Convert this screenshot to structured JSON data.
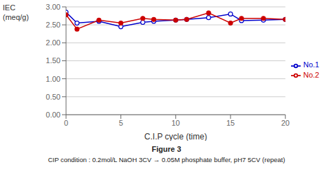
{
  "chart_data": {
    "type": "line",
    "xlabel": "C.I.P cycle (time)",
    "ylabel": [
      "IEC",
      "(meq/g)"
    ],
    "annotations": [
      "Figure 3",
      "CIP condition : 0.2mol/L NaOH 3CV → 0.05M phosphate buffer, pH7 5CV (repeat)"
    ],
    "x": [
      0,
      1,
      3,
      5,
      7,
      8,
      10,
      11,
      13,
      15,
      16,
      18,
      20
    ],
    "series": [
      {
        "name": "No.1",
        "color": "#0000cc",
        "marker": "open_circle",
        "values": [
          2.85,
          2.55,
          2.6,
          2.45,
          2.57,
          2.6,
          2.63,
          2.65,
          2.7,
          2.8,
          2.62,
          2.63,
          2.65
        ]
      },
      {
        "name": "No.2",
        "color": "#cc0000",
        "marker": "circle",
        "values": [
          2.78,
          2.38,
          2.63,
          2.55,
          2.68,
          2.65,
          2.63,
          2.65,
          2.83,
          2.55,
          2.68,
          2.68,
          2.65
        ]
      }
    ],
    "xlim": [
      0,
      20
    ],
    "ylim": [
      0.0,
      3.0
    ],
    "xticks": [
      0,
      5,
      10,
      15,
      20
    ],
    "yticks": [
      {
        "value": 0.0,
        "label": "0.00"
      },
      {
        "value": 0.5,
        "label": "0.50"
      },
      {
        "value": 1.0,
        "label": "1.00"
      },
      {
        "value": 1.5,
        "label": "1.50"
      },
      {
        "value": 2.0,
        "label": "2.00"
      },
      {
        "value": 2.5,
        "label": "2.50"
      },
      {
        "value": 3.0,
        "label": "3.00"
      }
    ],
    "grid": "y",
    "legend": "right"
  }
}
